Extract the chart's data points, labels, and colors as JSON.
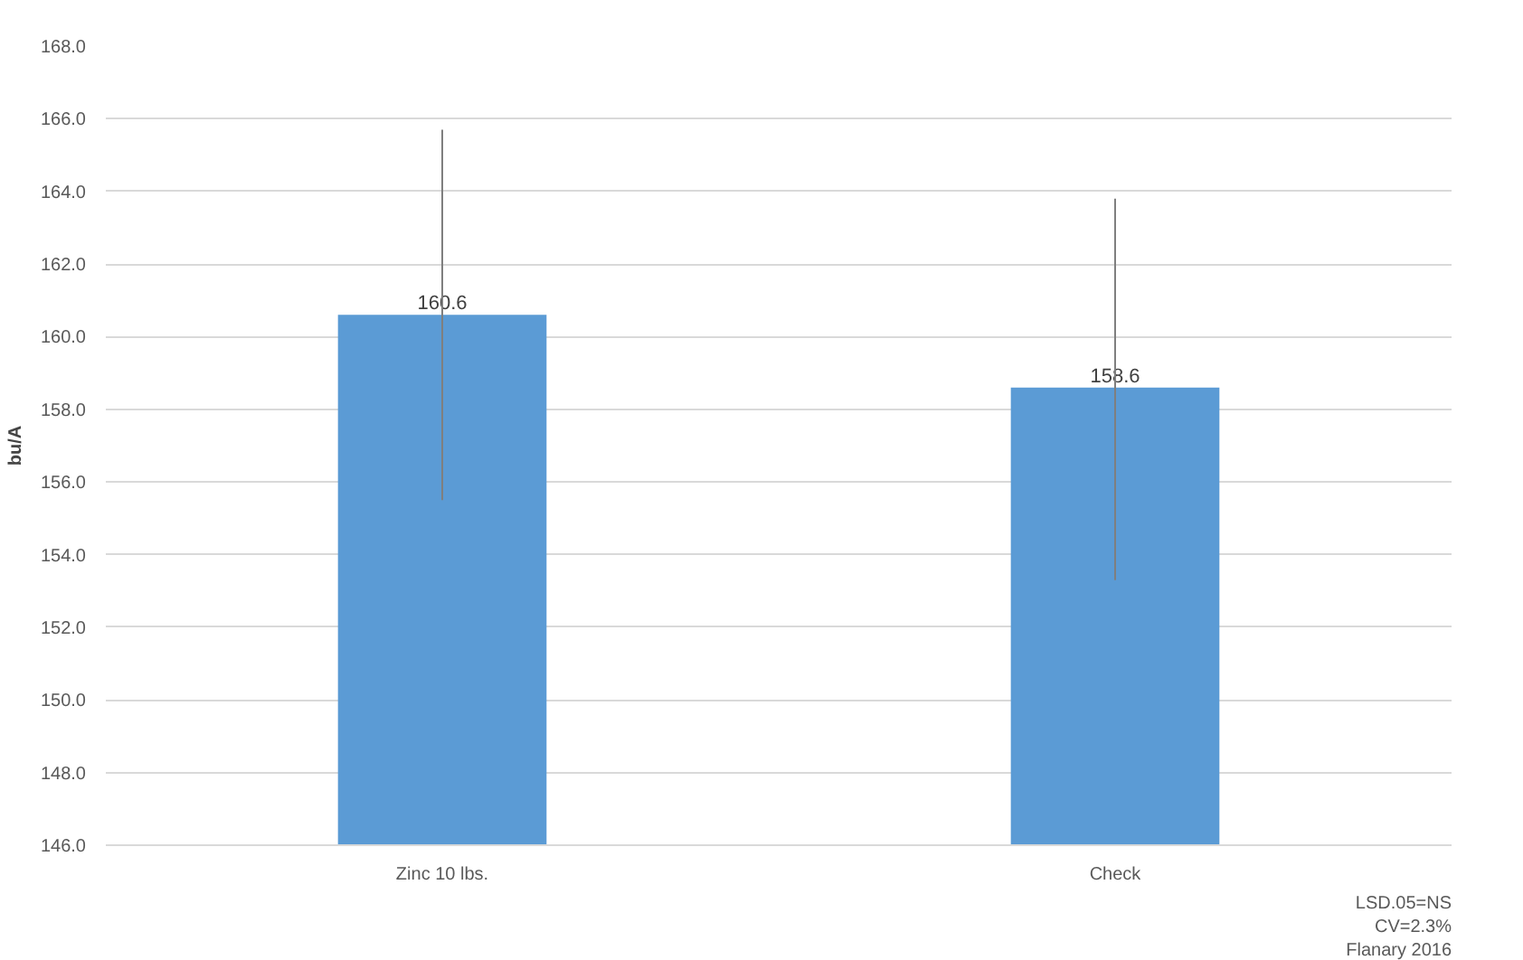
{
  "chart_data": {
    "type": "bar",
    "ylabel": "bu/A",
    "categories": [
      "Zinc 10 lbs.",
      "Check"
    ],
    "values": [
      160.6,
      158.6
    ],
    "color": "#5b9bd5",
    "errors": [
      [
        155.5,
        165.7
      ],
      [
        153.3,
        163.8
      ]
    ],
    "data_labels": true,
    "ylim": [
      146,
      168
    ],
    "yticks": [
      {
        "value": 146,
        "label": "146.0"
      },
      {
        "value": 148,
        "label": "148.0"
      },
      {
        "value": 150,
        "label": "150.0"
      },
      {
        "value": 152,
        "label": "152.0"
      },
      {
        "value": 154,
        "label": "154.0"
      },
      {
        "value": 156,
        "label": "156.0"
      },
      {
        "value": 158,
        "label": "158.0"
      },
      {
        "value": 160,
        "label": "160.0"
      },
      {
        "value": 162,
        "label": "162.0"
      },
      {
        "value": 164,
        "label": "164.0"
      },
      {
        "value": 166,
        "label": "166.0"
      },
      {
        "value": 168,
        "label": "168.0"
      }
    ],
    "grid": "y",
    "annotations": [
      "LSD.05=NS",
      "CV=2.3%",
      "Flanary 2016"
    ]
  }
}
